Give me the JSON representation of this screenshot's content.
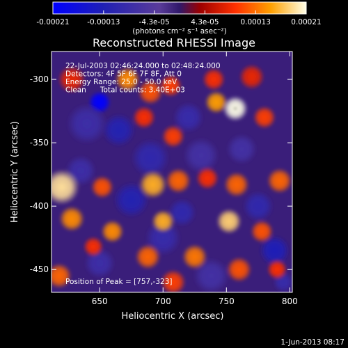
{
  "chart_data": {
    "type": "heatmap",
    "title": "Reconstructed RHESSI Image",
    "xlabel": "Heliocentric X (arcsec)",
    "ylabel": "Heliocentric Y (arcsec)",
    "xlim": [
      612,
      802
    ],
    "ylim": [
      -468,
      -278
    ],
    "xticks": [
      650,
      700,
      750,
      800
    ],
    "yticks": [
      -300,
      -350,
      -400,
      -450
    ],
    "info_lines": [
      "22-Jul-2003 02:46:24.000 to 02:48:24.000",
      "Detectors: 4F 5F 6F 7F 8F, Att 0",
      "Energy Range: 25.0 - 50.0 keV",
      "Clean      Total counts: 3.40E+03"
    ],
    "peak_label": "Position of Peak = [757,-323]",
    "peak": [
      757,
      -323
    ],
    "colorbar": {
      "ticks": [
        "-0.00021",
        "-0.00013",
        "-4.3e-05",
        "4.3e-05",
        "0.00013",
        "0.00021"
      ],
      "range": [
        -0.00021,
        0.00021
      ],
      "unit_text": "(photons cm⁻² s⁻¹ asec⁻²)"
    },
    "blobs": [
      {
        "x": 650,
        "y": -318,
        "v": -0.00021,
        "r": 9
      },
      {
        "x": 665,
        "y": -340,
        "v": -0.00012,
        "r": 13
      },
      {
        "x": 640,
        "y": -335,
        "v": -8e-05,
        "r": 16
      },
      {
        "x": 720,
        "y": -330,
        "v": -9e-05,
        "r": 12
      },
      {
        "x": 690,
        "y": -362,
        "v": -0.0001,
        "r": 15
      },
      {
        "x": 730,
        "y": -360,
        "v": -7e-05,
        "r": 14
      },
      {
        "x": 762,
        "y": -355,
        "v": -7e-05,
        "r": 12
      },
      {
        "x": 635,
        "y": -372,
        "v": -8e-05,
        "r": 12
      },
      {
        "x": 675,
        "y": -395,
        "v": -0.00012,
        "r": 14
      },
      {
        "x": 715,
        "y": -405,
        "v": -0.0001,
        "r": 11
      },
      {
        "x": 700,
        "y": -425,
        "v": -9e-05,
        "r": 14
      },
      {
        "x": 775,
        "y": -400,
        "v": -0.0001,
        "r": 12
      },
      {
        "x": 788,
        "y": -435,
        "v": -0.00013,
        "r": 12
      },
      {
        "x": 650,
        "y": -445,
        "v": -8e-05,
        "r": 12
      },
      {
        "x": 738,
        "y": -455,
        "v": -7e-05,
        "r": 14
      },
      {
        "x": 795,
        "y": -460,
        "v": -9e-05,
        "r": 8
      },
      {
        "x": 672,
        "y": -300,
        "v": 0.00014,
        "r": 10
      },
      {
        "x": 690,
        "y": -310,
        "v": 0.00011,
        "r": 10
      },
      {
        "x": 706,
        "y": -305,
        "v": 0.0001,
        "r": 9
      },
      {
        "x": 740,
        "y": -300,
        "v": 9e-05,
        "r": 9
      },
      {
        "x": 757,
        "y": -323,
        "v": 0.00021,
        "r": 10
      },
      {
        "x": 742,
        "y": -318,
        "v": 0.00015,
        "r": 9
      },
      {
        "x": 685,
        "y": -330,
        "v": 9e-05,
        "r": 9
      },
      {
        "x": 708,
        "y": -345,
        "v": 0.0001,
        "r": 9
      },
      {
        "x": 770,
        "y": -298,
        "v": 8e-05,
        "r": 10
      },
      {
        "x": 780,
        "y": -330,
        "v": 0.0001,
        "r": 9
      },
      {
        "x": 792,
        "y": -380,
        "v": 0.00012,
        "r": 10
      },
      {
        "x": 628,
        "y": -300,
        "v": 8e-05,
        "r": 11
      },
      {
        "x": 620,
        "y": -385,
        "v": 0.00019,
        "r": 14
      },
      {
        "x": 628,
        "y": -410,
        "v": 0.00014,
        "r": 10
      },
      {
        "x": 652,
        "y": -385,
        "v": 0.00011,
        "r": 9
      },
      {
        "x": 692,
        "y": -383,
        "v": 0.00016,
        "r": 11
      },
      {
        "x": 712,
        "y": -380,
        "v": 0.00012,
        "r": 10
      },
      {
        "x": 735,
        "y": -378,
        "v": 9e-05,
        "r": 9
      },
      {
        "x": 758,
        "y": -383,
        "v": 0.00012,
        "r": 10
      },
      {
        "x": 700,
        "y": -412,
        "v": 0.00016,
        "r": 9
      },
      {
        "x": 752,
        "y": -412,
        "v": 0.00018,
        "r": 10
      },
      {
        "x": 778,
        "y": -420,
        "v": 0.00011,
        "r": 9
      },
      {
        "x": 660,
        "y": -420,
        "v": 0.00014,
        "r": 9
      },
      {
        "x": 645,
        "y": -432,
        "v": 9e-05,
        "r": 8
      },
      {
        "x": 688,
        "y": -440,
        "v": 0.00012,
        "r": 10
      },
      {
        "x": 725,
        "y": -440,
        "v": 0.00013,
        "r": 10
      },
      {
        "x": 760,
        "y": -450,
        "v": 0.00011,
        "r": 10
      },
      {
        "x": 790,
        "y": -450,
        "v": 9e-05,
        "r": 8
      },
      {
        "x": 618,
        "y": -455,
        "v": 0.00012,
        "r": 10
      },
      {
        "x": 708,
        "y": -460,
        "v": 0.0001,
        "r": 10
      }
    ]
  },
  "footer": {
    "date_stamp": "1-Jun-2013 08:17"
  }
}
